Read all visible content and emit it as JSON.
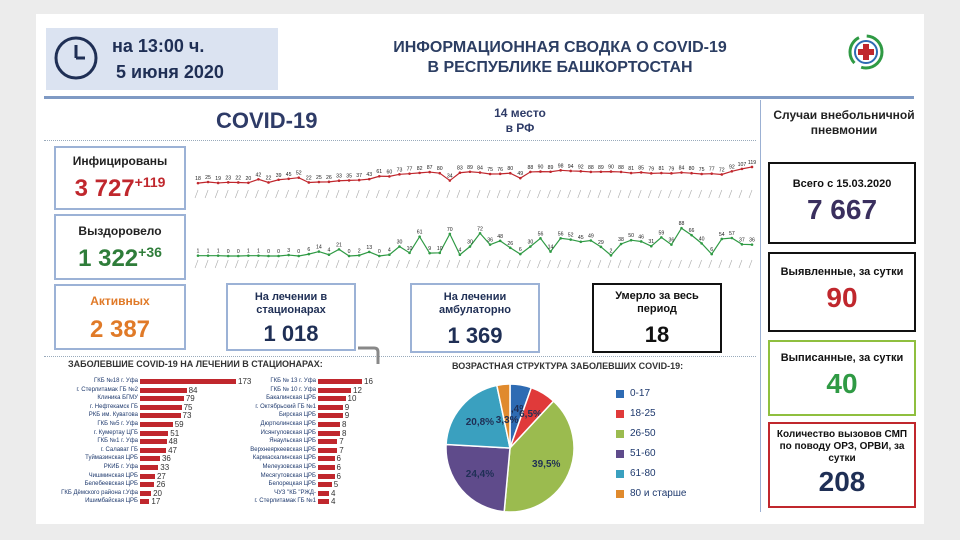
{
  "header": {
    "time_line": "на 13:00 ч.",
    "date_line": "5 июня 2020",
    "title_line1": "ИНФОРМАЦИОННАЯ СВОДКА О COVID-19",
    "title_line2": "В РЕСПУБЛИКЕ БАШКОРТОСТАН"
  },
  "main": {
    "covid_label": "COVID-19",
    "rank_line1": "14 место",
    "rank_line2": "в РФ"
  },
  "infected": {
    "label": "Инфицированы",
    "value": "3 727",
    "delta": "+119"
  },
  "recovered": {
    "label": "Выздоровело",
    "value": "1 322",
    "delta": "+36"
  },
  "active": {
    "label": "Активных",
    "value": "2 387"
  },
  "hospital": {
    "label": "На лечении в стационарах",
    "value": "1 018"
  },
  "outpatient": {
    "label": "На лечении амбулаторно",
    "value": "1 369"
  },
  "deaths": {
    "label": "Умерло за весь период",
    "value": "18"
  },
  "right_panel": {
    "title": "Случаи внебольничной пневмонии",
    "total_label": "Всего с 15.03.2020",
    "total_value": "7 667",
    "detected_label": "Выявленные, за сутки",
    "detected_value": "90",
    "discharged_label": "Выписанные, за сутки",
    "discharged_value": "40",
    "calls_label": "Количество вызовов СМП по поводу ОРЗ, ОРВИ, за сутки",
    "calls_value": "208"
  },
  "colors": {
    "red": "#c0272d",
    "green": "#2f9a44",
    "orange": "#e07a28",
    "navy": "#1f2f55"
  },
  "daily_infected": [
    18,
    25,
    19,
    23,
    22,
    20,
    42,
    22,
    39,
    45,
    52,
    22,
    25,
    26,
    33,
    35,
    37,
    43,
    61,
    60,
    73,
    77,
    82,
    87,
    80,
    34,
    83,
    89,
    84,
    75,
    76,
    80,
    49,
    88,
    90,
    89,
    98,
    94,
    92,
    88,
    89,
    90,
    88,
    81,
    85,
    79,
    81,
    79,
    84,
    80,
    75,
    77,
    72,
    92,
    107,
    119
  ],
  "daily_recovered": [
    1,
    1,
    1,
    0,
    0,
    1,
    1,
    0,
    0,
    3,
    0,
    6,
    14,
    4,
    21,
    0,
    2,
    13,
    0,
    4,
    30,
    10,
    61,
    9,
    10,
    70,
    4,
    30,
    72,
    36,
    48,
    26,
    6,
    30,
    56,
    14,
    56,
    52,
    45,
    49,
    29,
    2,
    38,
    50,
    46,
    31,
    59,
    36,
    88,
    66,
    40,
    6,
    54,
    57,
    37,
    36
  ],
  "hospitals_left": [
    {
      "name": "ГКБ №18 г. Уфа",
      "value": 173
    },
    {
      "name": "г. Стерлитамак ГБ №2",
      "value": 84
    },
    {
      "name": "Клиника БГМУ",
      "value": 79
    },
    {
      "name": "г. Нефтекамск ГБ",
      "value": 75
    },
    {
      "name": "РКБ им. Куватова",
      "value": 73
    },
    {
      "name": "ГКБ №5 г. Уфа",
      "value": 59
    },
    {
      "name": "г. Кумертау ЦГБ",
      "value": 51
    },
    {
      "name": "ГКБ №1 г. Уфа",
      "value": 48
    },
    {
      "name": "г. Салават ГБ",
      "value": 47
    },
    {
      "name": "Туймазинская ЦРБ",
      "value": 36
    },
    {
      "name": "РКИБ г. Уфа",
      "value": 33
    },
    {
      "name": "Чишминская ЦРБ",
      "value": 27
    },
    {
      "name": "Белебеевская ЦРБ",
      "value": 26
    },
    {
      "name": "ГКБ Дёмского района г.Уфа",
      "value": 20
    },
    {
      "name": "Ишимбайская ЦРБ",
      "value": 17
    }
  ],
  "hospitals_right": [
    {
      "name": "ГКБ № 13 г. Уфа",
      "value": 16
    },
    {
      "name": "ГКБ № 10 г. Уфа",
      "value": 12
    },
    {
      "name": "Бакалинская ЦРБ",
      "value": 10
    },
    {
      "name": "г. Октябрьский ГБ №1",
      "value": 9
    },
    {
      "name": "Бирская ЦРБ",
      "value": 9
    },
    {
      "name": "Дюртюлинская ЦРБ",
      "value": 8
    },
    {
      "name": "Исянгуловская ЦРБ",
      "value": 8
    },
    {
      "name": "Янаульская ЦРБ",
      "value": 7
    },
    {
      "name": "Верхнеяркеевская ЦРБ",
      "value": 7
    },
    {
      "name": "Кармаскалинская ЦРБ",
      "value": 6
    },
    {
      "name": "Мелеузовская ЦРБ",
      "value": 6
    },
    {
      "name": "Месягутовская ЦРБ",
      "value": 6
    },
    {
      "name": "Белорецкая ЦРБ",
      "value": 5
    },
    {
      "name": "ЧУЗ \"КБ \"РЖД-",
      "value": 4
    },
    {
      "name": "г. Стерлитамак ГБ №1",
      "value": 4
    }
  ],
  "hospitals_title": "ЗАБОЛЕВШИЕ COVID-19 НА ЛЕЧЕНИИ В СТАЦИОНАРАХ:",
  "chart_data": {
    "type": "pie",
    "title": "ВОЗРАСТНАЯ СТРУКТУРА ЗАБОЛЕВШИХ COVID-19:",
    "categories": [
      "0-17",
      "18-25",
      "26-50",
      "51-60",
      "61-80",
      "80 и старше"
    ],
    "values": [
      5.4,
      6.5,
      39.5,
      24.4,
      20.8,
      3.3
    ],
    "labels": [
      "5,4%",
      "6,5%",
      "39,5%",
      "24,4%",
      "20,8%",
      "3,3%"
    ],
    "colors": [
      "#2e6bb3",
      "#e03a3a",
      "#9bbb4f",
      "#5f4b8b",
      "#3aa0bf",
      "#e08a2d"
    ]
  }
}
